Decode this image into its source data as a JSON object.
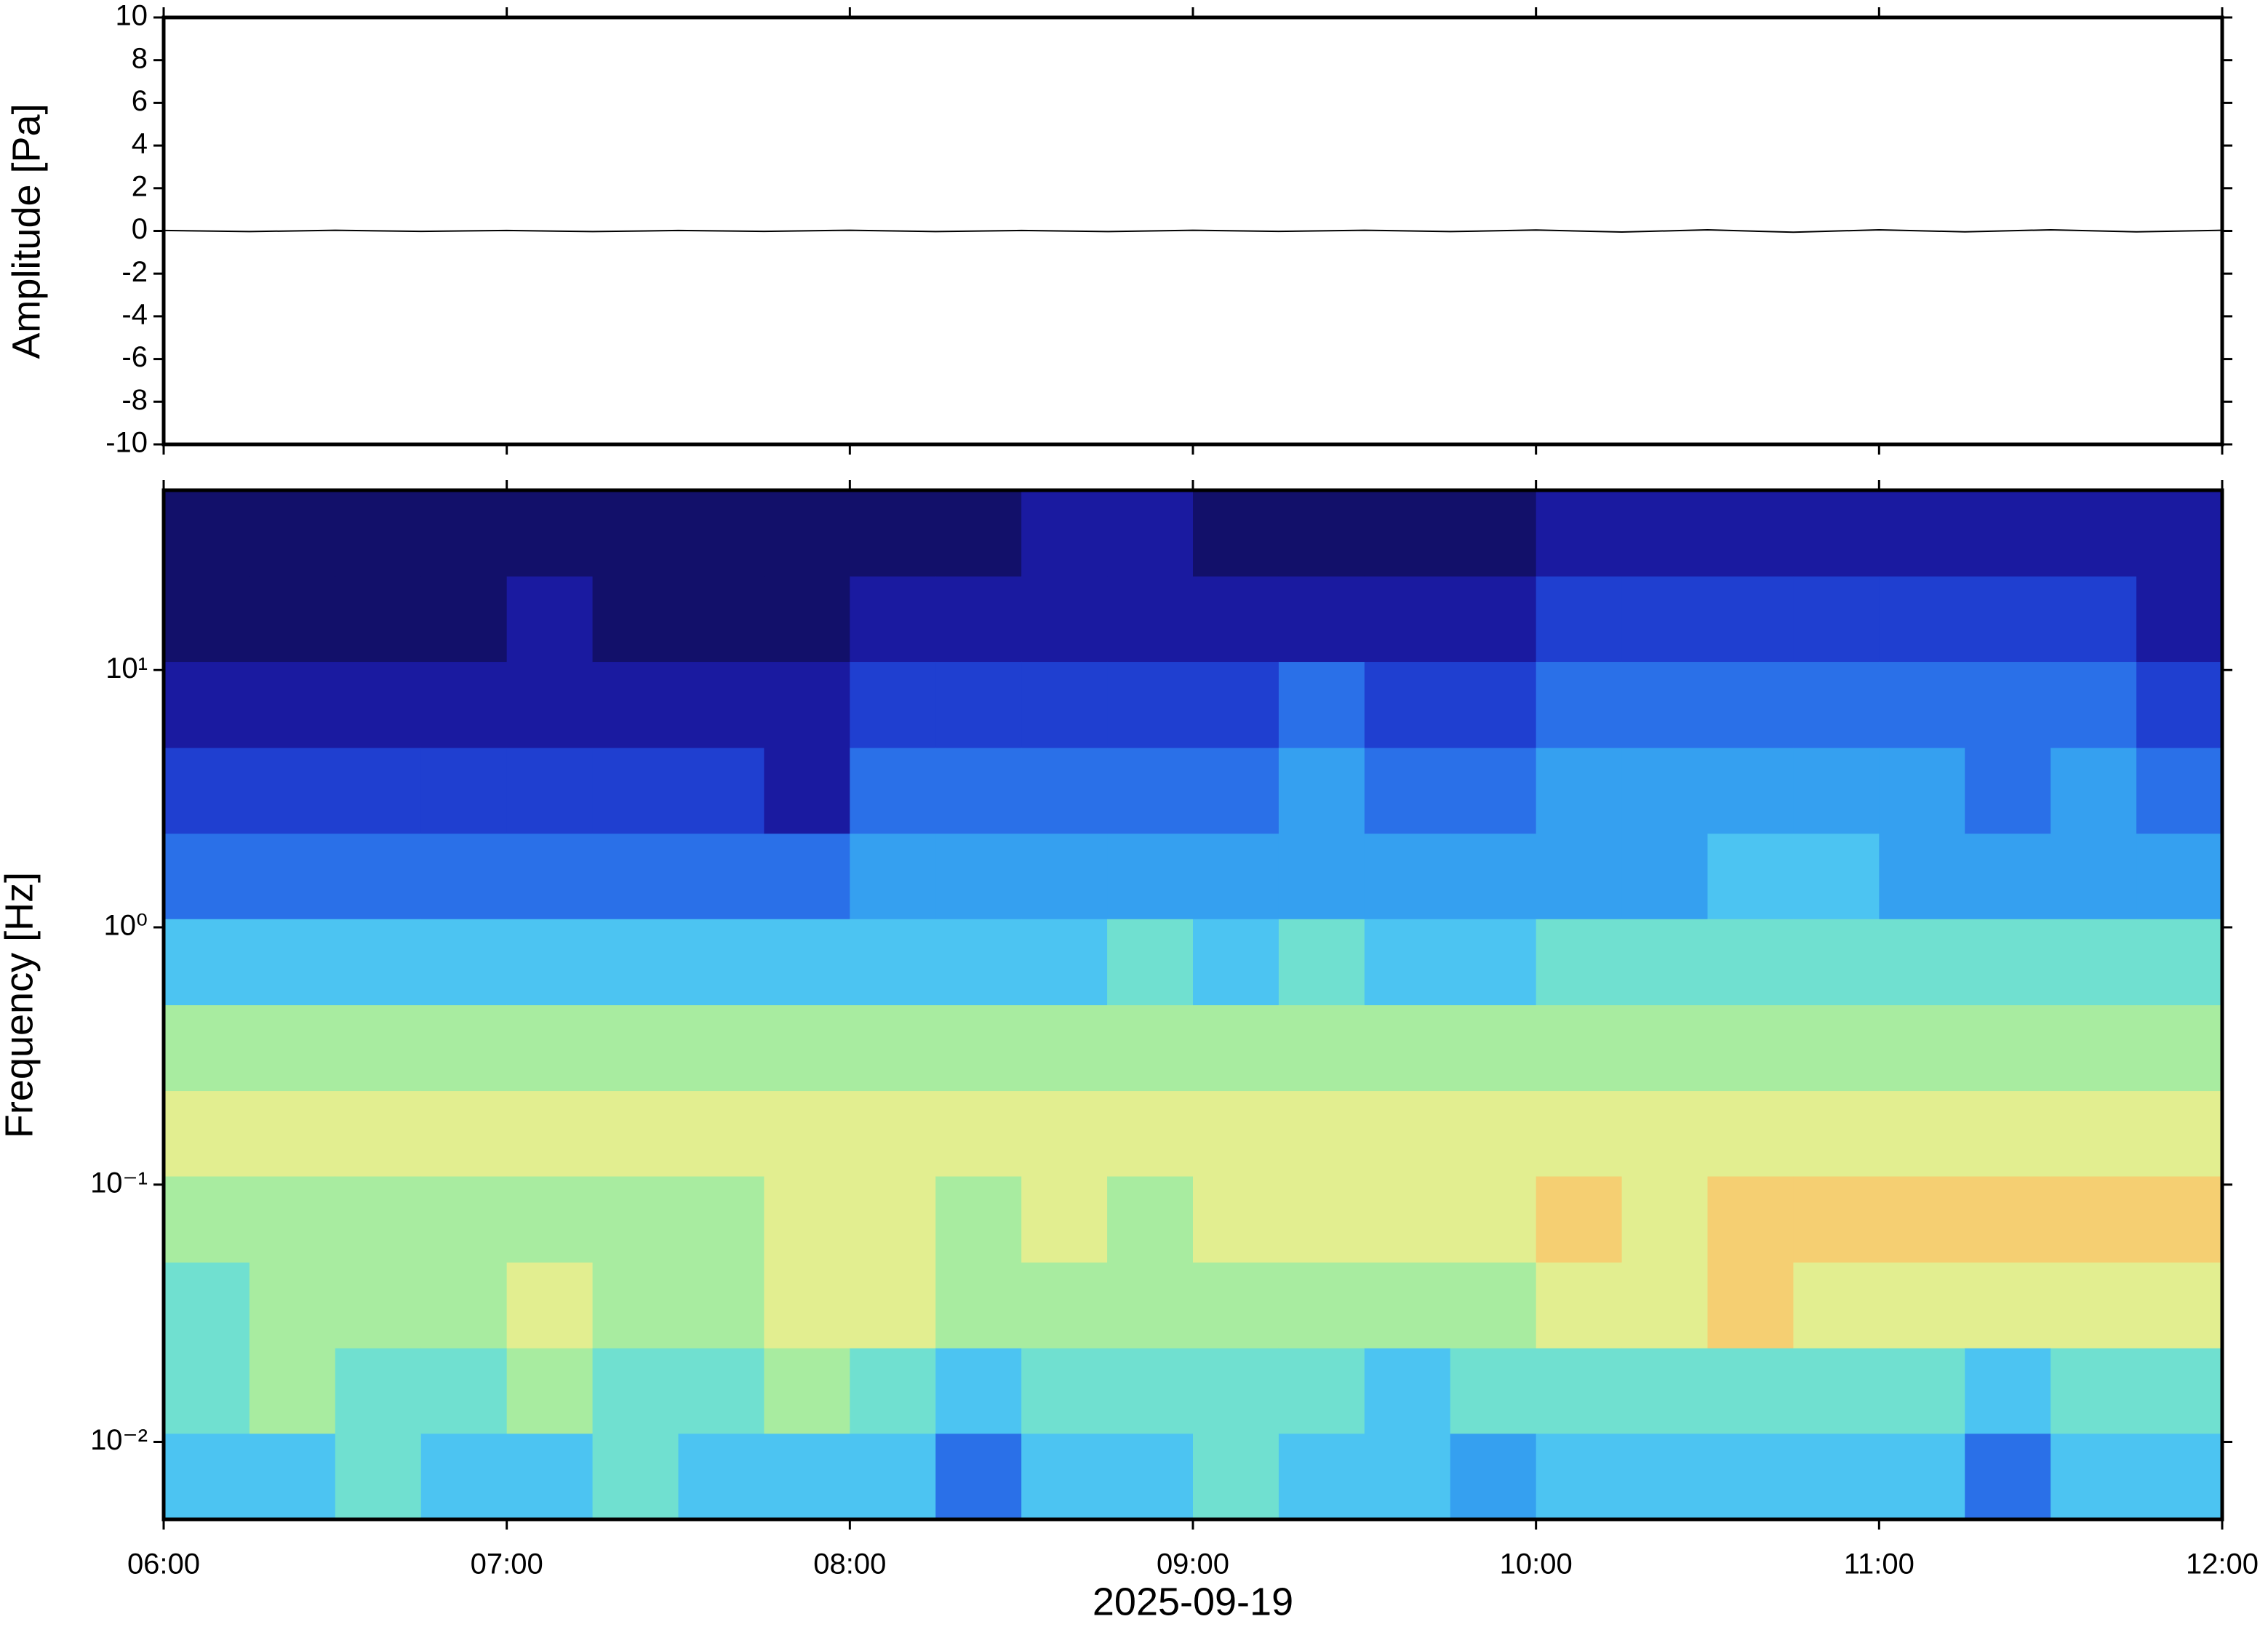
{
  "chart_data": [
    {
      "type": "line",
      "ylabel": "Amplitude [Pa]",
      "xlim": [
        6,
        12
      ],
      "xticks": [
        6,
        7,
        8,
        9,
        10,
        11,
        12
      ],
      "ylim": [
        -10,
        10
      ],
      "yticks": [
        -10,
        -8,
        -6,
        -4,
        -2,
        0,
        2,
        4,
        6,
        8,
        10
      ],
      "color": "#000000",
      "x": [
        6,
        6.25,
        6.5,
        6.75,
        7,
        7.25,
        7.5,
        7.75,
        8,
        8.25,
        8.5,
        8.75,
        9,
        9.25,
        9.5,
        9.75,
        10,
        10.25,
        10.5,
        10.75,
        11,
        11.25,
        11.5,
        11.75,
        12
      ],
      "values": [
        0.02,
        -0.03,
        0.03,
        -0.02,
        0.02,
        -0.03,
        0.02,
        -0.02,
        0.03,
        -0.03,
        0.02,
        -0.03,
        0.03,
        -0.02,
        0.03,
        -0.03,
        0.04,
        -0.05,
        0.05,
        -0.06,
        0.05,
        -0.04,
        0.05,
        -0.04,
        0.03
      ]
    },
    {
      "type": "spectrogram",
      "ylabel": "Frequency [Hz]",
      "xlabel": "2025-09-19",
      "xlim": [
        6,
        12
      ],
      "xticks": [
        {
          "value": 6,
          "label": "06:00"
        },
        {
          "value": 7,
          "label": "07:00"
        },
        {
          "value": 8,
          "label": "08:00"
        },
        {
          "value": 9,
          "label": "09:00"
        },
        {
          "value": 10,
          "label": "10:00"
        },
        {
          "value": 11,
          "label": "11:00"
        },
        {
          "value": 12,
          "label": "12:00"
        }
      ],
      "ylim": [
        0.005,
        50
      ],
      "log_y": true,
      "yticks": [
        {
          "value": 0.01,
          "label": "10⁻²"
        },
        {
          "value": 0.1,
          "label": "10⁻¹"
        },
        {
          "value": 1,
          "label": "10⁰"
        },
        {
          "value": 10,
          "label": "10¹"
        }
      ],
      "xbins": [
        6,
        6.25,
        6.5,
        6.75,
        7,
        7.25,
        7.5,
        7.75,
        8,
        8.25,
        8.5,
        8.75,
        9,
        9.25,
        9.5,
        9.75,
        10,
        10.25,
        10.5,
        10.75,
        11,
        11.25,
        11.5,
        11.75,
        12
      ],
      "ybins": [
        0.005,
        0.0108,
        0.0232,
        0.05,
        0.108,
        0.232,
        0.5,
        1.08,
        2.32,
        5,
        10.8,
        23.2,
        50
      ],
      "zlim": [
        0,
        10
      ],
      "colormap": [
        "#12106a",
        "#1a1aa0",
        "#1f3fd0",
        "#2a70e8",
        "#35a0f0",
        "#4cc4f2",
        "#70e0d0",
        "#a8eca0",
        "#e2ee90",
        "#f5cf72",
        "#f2a452"
      ],
      "z": [
        [
          5,
          6,
          6,
          7,
          8,
          7,
          5,
          3,
          2,
          1,
          0,
          0
        ],
        [
          5,
          7,
          7,
          7,
          8,
          7,
          5,
          3,
          2,
          1,
          0,
          0
        ],
        [
          6,
          6,
          7,
          7,
          8,
          7,
          5,
          3,
          2,
          1,
          0,
          0
        ],
        [
          5,
          6,
          7,
          7,
          8,
          7,
          5,
          3,
          2,
          1,
          0,
          0
        ],
        [
          5,
          7,
          8,
          7,
          8,
          7,
          5,
          3,
          2,
          1,
          1,
          0
        ],
        [
          6,
          6,
          7,
          7,
          8,
          7,
          5,
          3,
          2,
          1,
          0,
          0
        ],
        [
          5,
          6,
          7,
          7,
          8,
          7,
          5,
          3,
          2,
          1,
          0,
          0
        ],
        [
          5,
          7,
          8,
          8,
          8,
          7,
          5,
          3,
          1,
          1,
          0,
          0
        ],
        [
          5,
          6,
          8,
          8,
          8,
          7,
          5,
          4,
          3,
          2,
          1,
          0
        ],
        [
          3,
          5,
          7,
          7,
          8,
          7,
          5,
          4,
          3,
          2,
          1,
          0
        ],
        [
          5,
          6,
          7,
          8,
          8,
          7,
          5,
          4,
          3,
          2,
          1,
          1
        ],
        [
          5,
          6,
          7,
          7,
          8,
          7,
          6,
          4,
          3,
          2,
          1,
          1
        ],
        [
          6,
          6,
          7,
          8,
          8,
          7,
          5,
          4,
          3,
          2,
          1,
          0
        ],
        [
          5,
          6,
          7,
          8,
          8,
          7,
          6,
          4,
          4,
          3,
          1,
          0
        ],
        [
          5,
          5,
          7,
          8,
          8,
          7,
          5,
          4,
          3,
          2,
          1,
          0
        ],
        [
          4,
          6,
          7,
          8,
          8,
          7,
          5,
          4,
          3,
          2,
          1,
          0
        ],
        [
          5,
          6,
          8,
          9,
          8,
          7,
          6,
          4,
          4,
          3,
          2,
          1
        ],
        [
          5,
          6,
          8,
          8,
          8,
          7,
          6,
          4,
          4,
          3,
          2,
          1
        ],
        [
          5,
          6,
          9,
          9,
          8,
          7,
          6,
          5,
          4,
          3,
          2,
          1
        ],
        [
          5,
          6,
          8,
          9,
          8,
          7,
          6,
          5,
          4,
          3,
          2,
          1
        ],
        [
          5,
          6,
          8,
          9,
          8,
          7,
          6,
          4,
          4,
          3,
          2,
          1
        ],
        [
          3,
          5,
          8,
          9,
          8,
          7,
          6,
          4,
          3,
          3,
          2,
          1
        ],
        [
          5,
          6,
          8,
          9,
          8,
          7,
          6,
          4,
          4,
          3,
          2,
          1
        ],
        [
          5,
          6,
          8,
          9,
          8,
          7,
          6,
          4,
          3,
          2,
          1,
          1
        ]
      ]
    }
  ]
}
